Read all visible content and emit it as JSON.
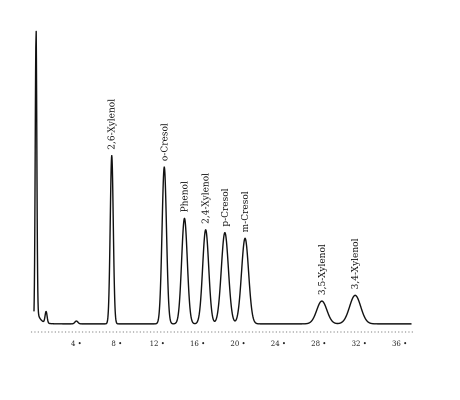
{
  "chart_data": {
    "type": "line",
    "title": "",
    "xlabel": "",
    "ylabel": "",
    "xlim": [
      -0.5,
      37.5
    ],
    "ylim": [
      0,
      100
    ],
    "grid": false,
    "legend": "none",
    "x_ticks": [
      "4",
      "8",
      "12",
      "16",
      "20",
      "24",
      "28",
      "32",
      "36"
    ],
    "x_tick_values": [
      4,
      8,
      12,
      16,
      20,
      24,
      28,
      32,
      36
    ],
    "solvent_peak": {
      "x": 0.0,
      "height": 100,
      "width": 0.08
    },
    "baseline": 2.5,
    "minor_peaks": [
      {
        "x": 1.0,
        "height": 4,
        "width": 0.1
      },
      {
        "x": 4.0,
        "height": 1,
        "width": 0.15
      }
    ],
    "peaks": [
      {
        "label": "2,6-Xylenol",
        "x": 7.5,
        "height": 59,
        "width": 0.15
      },
      {
        "label": "o-Cresol",
        "x": 12.7,
        "height": 55,
        "width": 0.22
      },
      {
        "label": "Phenol",
        "x": 14.7,
        "height": 37,
        "width": 0.28
      },
      {
        "label": "2,4-Xylenol",
        "x": 16.8,
        "height": 33,
        "width": 0.3
      },
      {
        "label": "p-Cresol",
        "x": 18.7,
        "height": 32,
        "width": 0.35
      },
      {
        "label": "m-Cresol",
        "x": 20.7,
        "height": 30,
        "width": 0.35
      },
      {
        "label": "3,5-Xylenol",
        "x": 28.3,
        "height": 8,
        "width": 0.5
      },
      {
        "label": "3,4-Xylenol",
        "x": 31.6,
        "height": 10,
        "width": 0.55
      }
    ]
  }
}
